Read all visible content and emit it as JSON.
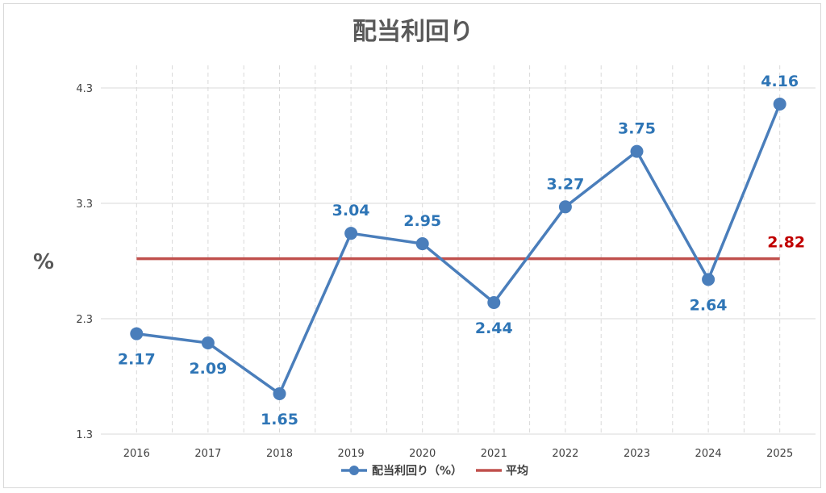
{
  "chart_data": {
    "type": "line",
    "title": "配当利回り",
    "ylabel": "%",
    "xlabel": "",
    "categories": [
      "2016",
      "2017",
      "2018",
      "2019",
      "2020",
      "2021",
      "2022",
      "2023",
      "2024",
      "2025"
    ],
    "series": [
      {
        "name": "配当利回り（%）",
        "values": [
          2.17,
          2.09,
          1.65,
          3.04,
          2.95,
          2.44,
          3.27,
          3.75,
          2.64,
          4.16
        ],
        "color": "#4a7ebb",
        "label_color": "#2e75b6",
        "data_labels": [
          "2.17",
          "2.09",
          "1.65",
          "3.04",
          "2.95",
          "2.44",
          "3.27",
          "3.75",
          "2.64",
          "4.16"
        ],
        "label_side": [
          "below",
          "below",
          "below",
          "above",
          "above",
          "below",
          "above",
          "above",
          "below",
          "above"
        ]
      },
      {
        "name": "平均",
        "values": [
          2.82,
          2.82,
          2.82,
          2.82,
          2.82,
          2.82,
          2.82,
          2.82,
          2.82,
          2.82
        ],
        "color": "#c0504d",
        "label_color": "#c00000",
        "end_label": "2.82"
      }
    ],
    "ylim": [
      1.3,
      4.3
    ],
    "yticks": [
      "1.3",
      "2.3",
      "3.3",
      "4.3"
    ],
    "grid": "vertical dashed",
    "legend": "bottom"
  }
}
